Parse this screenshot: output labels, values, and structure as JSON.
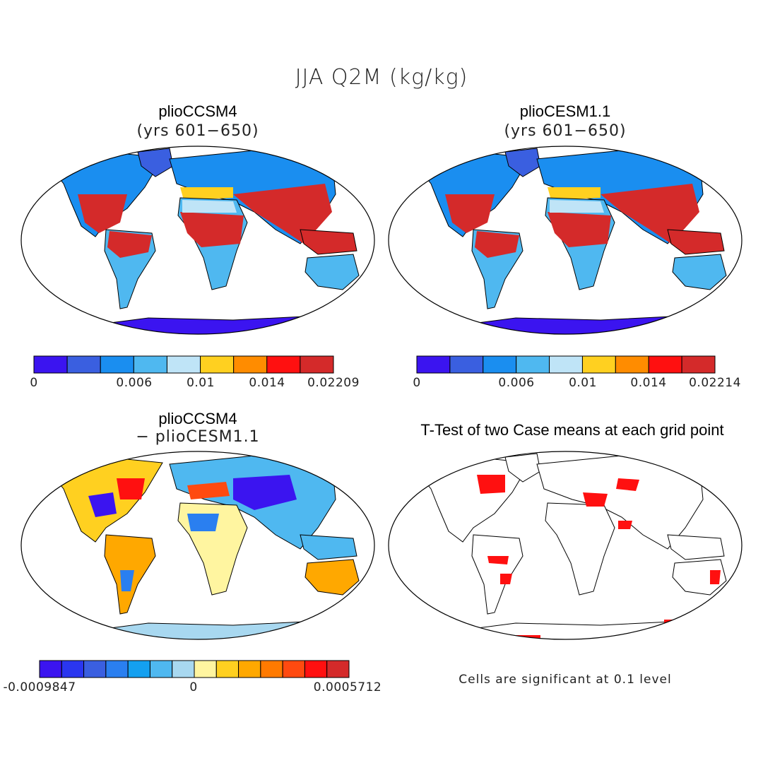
{
  "figure": {
    "title": "JJA Q2M (kg/kg)"
  },
  "panels": {
    "top_left": {
      "title": "plioCCSM4",
      "subtitle": "(yrs 601−650)",
      "ticks": [
        "0",
        "0.006",
        "0.01",
        "0.014",
        "0.02209"
      ]
    },
    "top_right": {
      "title": "plioCESM1.1",
      "subtitle": "(yrs 601−650)",
      "ticks": [
        "0",
        "0.006",
        "0.01",
        "0.014",
        "0.02214"
      ]
    },
    "bottom_left": {
      "title": "plioCCSM4",
      "subtitle": "− plioCESM1.1",
      "ticks": [
        "-0.0009847",
        "0",
        "0.0005712"
      ]
    },
    "bottom_right": {
      "title": "T-Test of two Case means at each grid point",
      "note": "Cells are significant at 0.1 level"
    }
  },
  "colors": {
    "absolute_scale": [
      "#3b14f0",
      "#3a5fe0",
      "#1a8ef0",
      "#4fb8f0",
      "#bfe4f7",
      "#ffd020",
      "#ff8c00",
      "#ff1010",
      "#d42a2a"
    ],
    "difference_scale": [
      "#3b14f0",
      "#2a36f0",
      "#3a5fe0",
      "#2a7ff0",
      "#14a0f0",
      "#4fb8f0",
      "#a8d8f0",
      "#fff5a0",
      "#ffd020",
      "#ffa800",
      "#ff7a00",
      "#ff4a10",
      "#ff1010",
      "#d42a2a"
    ],
    "significance": "#ff1010",
    "coast": "#000000"
  }
}
